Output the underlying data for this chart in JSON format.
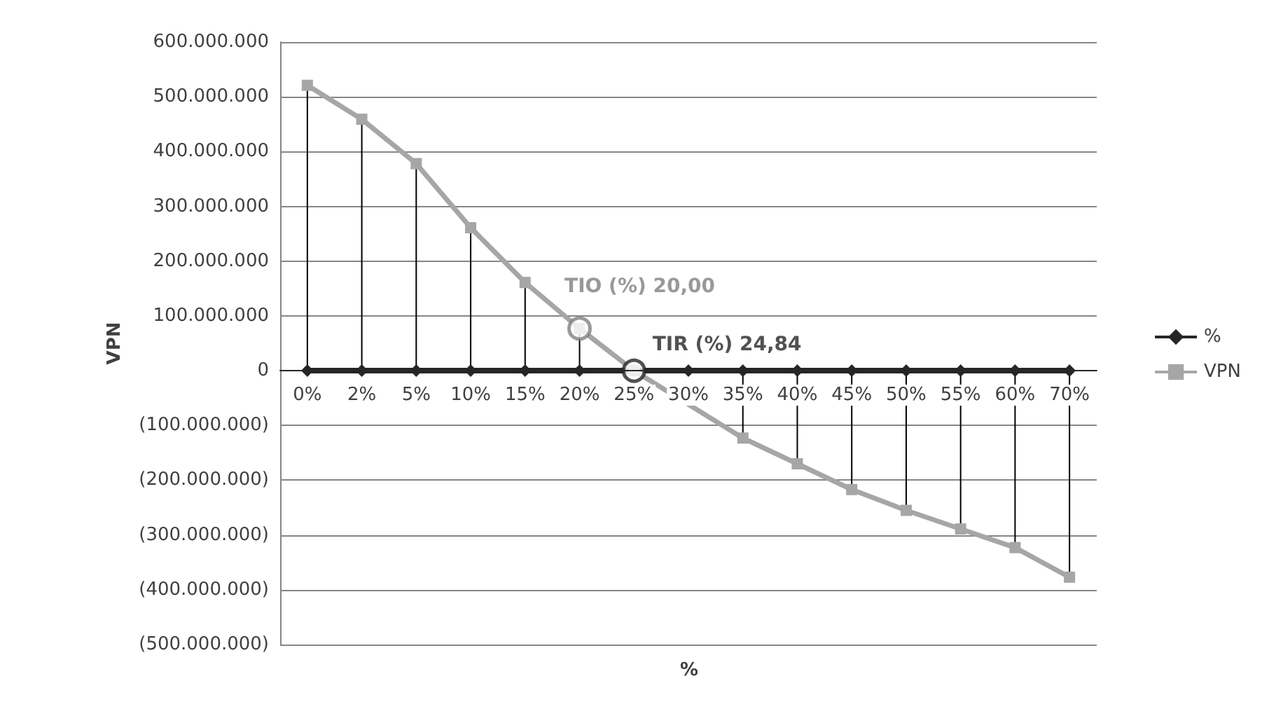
{
  "chart_data": {
    "type": "line",
    "ylabel": "VPN",
    "xlabel": "%",
    "categories": [
      "0%",
      "2%",
      "5%",
      "10%",
      "15%",
      "20%",
      "25%",
      "30%",
      "35%",
      "40%",
      "45%",
      "50%",
      "55%",
      "60%",
      "70%"
    ],
    "series": [
      {
        "name": "%",
        "color": "#262626",
        "marker": "diamond",
        "values": [
          0,
          0,
          0,
          0,
          0,
          0,
          0,
          0,
          0,
          0,
          0,
          0,
          0,
          0,
          0
        ]
      },
      {
        "name": "VPN",
        "color": "#a6a6a6",
        "marker": "square",
        "values": [
          521000000,
          459000000,
          378000000,
          261000000,
          161000000,
          77000000,
          0,
          null,
          -123000000,
          -170000000,
          -217000000,
          -255000000,
          -289000000,
          -323000000,
          -377000000
        ],
        "errors": [
          [
            0,
            521000000
          ],
          [
            0,
            459000000
          ],
          [
            0,
            378000000
          ],
          [
            0,
            261000000
          ],
          [
            0,
            161000000
          ],
          [
            0,
            77000000
          ],
          null,
          null,
          [
            -123000000,
            0
          ],
          [
            -170000000,
            0
          ],
          [
            -217000000,
            0
          ],
          [
            -255000000,
            0
          ],
          [
            -289000000,
            0
          ],
          [
            -323000000,
            0
          ],
          [
            -377000000,
            0
          ]
        ]
      }
    ],
    "ylim": [
      -500000000,
      600000000
    ],
    "yticks": [
      {
        "value": -500000000,
        "label": "(500.000.000)"
      },
      {
        "value": -400000000,
        "label": "(400.000.000)"
      },
      {
        "value": -300000000,
        "label": "(300.000.000)"
      },
      {
        "value": -200000000,
        "label": "(200.000.000)"
      },
      {
        "value": -100000000,
        "label": "(100.000.000)"
      },
      {
        "value": 0,
        "label": "0"
      },
      {
        "value": 100000000,
        "label": "100.000.000"
      },
      {
        "value": 200000000,
        "label": "200.000.000"
      },
      {
        "value": 300000000,
        "label": "300.000.000"
      },
      {
        "value": 400000000,
        "label": "400.000.000"
      },
      {
        "value": 500000000,
        "label": "500.000.000"
      },
      {
        "value": 600000000,
        "label": "600.000.000"
      }
    ],
    "grid": "y",
    "legend": "right",
    "annotations": [
      {
        "text": "TIO (%) 20,00",
        "x": "20%",
        "y": 77000000
      },
      {
        "text": "TIR (%) 24,84",
        "x": "25%",
        "y": 0
      }
    ]
  }
}
